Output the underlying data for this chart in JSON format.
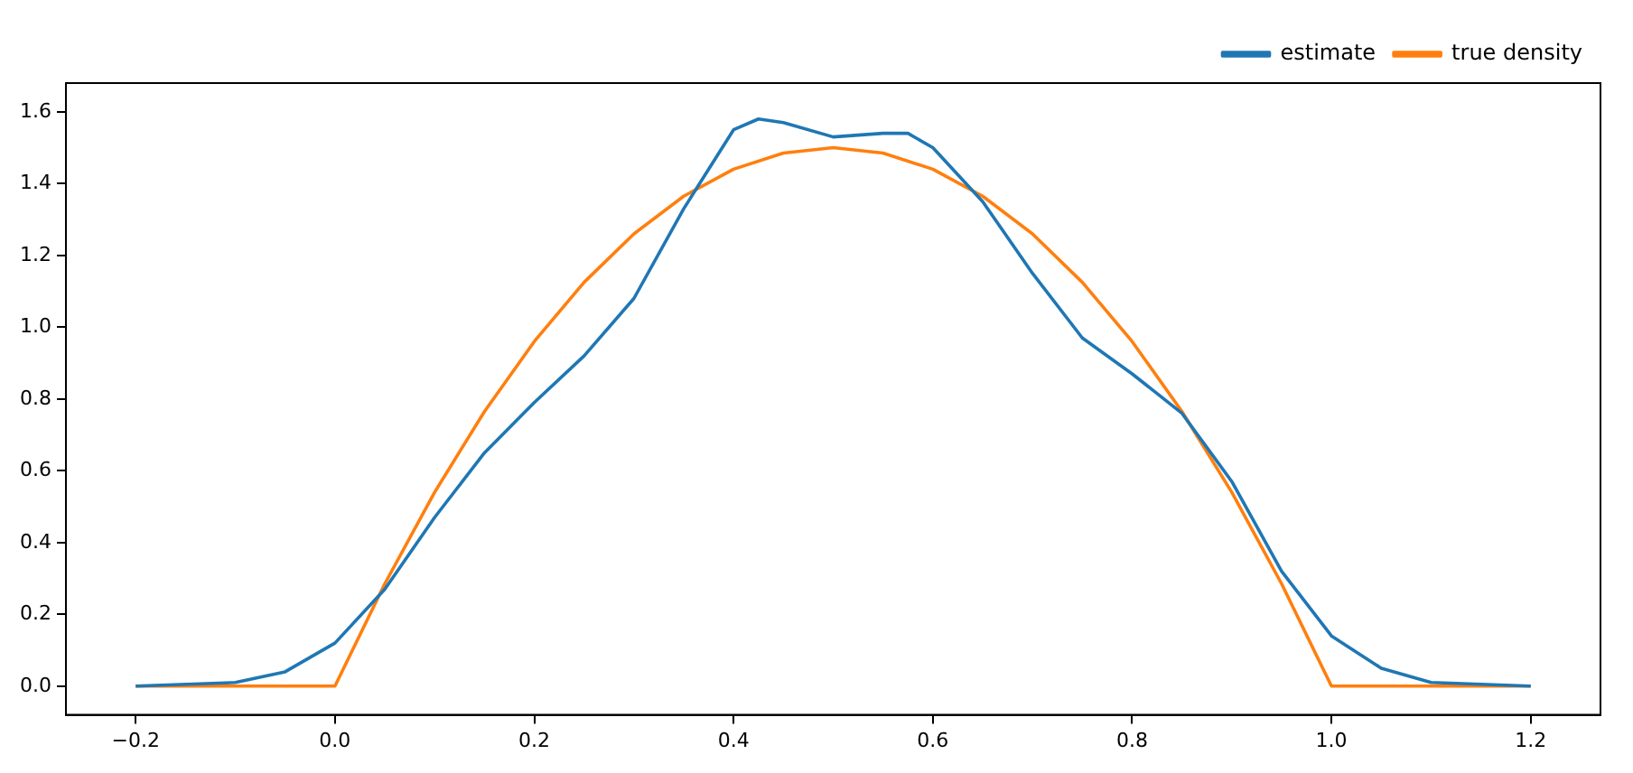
{
  "chart_data": {
    "type": "line",
    "xlim": [
      -0.27,
      1.27
    ],
    "ylim": [
      -0.08,
      1.68
    ],
    "xticks": [
      {
        "value": -0.2,
        "label": "−0.2"
      },
      {
        "value": 0,
        "label": "0.0"
      },
      {
        "value": 0.2,
        "label": "0.2"
      },
      {
        "value": 0.4,
        "label": "0.4"
      },
      {
        "value": 0.6,
        "label": "0.6"
      },
      {
        "value": 0.8,
        "label": "0.8"
      },
      {
        "value": 1,
        "label": "1.0"
      },
      {
        "value": 1.2,
        "label": "1.2"
      }
    ],
    "yticks": [
      {
        "value": 0,
        "label": "0.0"
      },
      {
        "value": 0.2,
        "label": "0.2"
      },
      {
        "value": 0.4,
        "label": "0.4"
      },
      {
        "value": 0.6,
        "label": "0.6"
      },
      {
        "value": 0.8,
        "label": "0.8"
      },
      {
        "value": 1,
        "label": "1.0"
      },
      {
        "value": 1.2,
        "label": "1.2"
      },
      {
        "value": 1.4,
        "label": "1.4"
      },
      {
        "value": 1.6,
        "label": "1.6"
      }
    ],
    "legend": "top right",
    "grid": false,
    "marker": "none",
    "line_style": "solid",
    "series": [
      {
        "name": "estimate",
        "color": "#1f77b4",
        "x": [
          -0.2,
          -0.1,
          -0.05,
          0,
          0.05,
          0.1,
          0.15,
          0.2,
          0.25,
          0.3,
          0.35,
          0.4,
          0.425,
          0.45,
          0.5,
          0.55,
          0.575,
          0.6,
          0.65,
          0.7,
          0.75,
          0.8,
          0.85,
          0.9,
          0.95,
          1,
          1.05,
          1.1,
          1.2
        ],
        "values": [
          0,
          0.01,
          0.04,
          0.12,
          0.27,
          0.47,
          0.65,
          0.79,
          0.92,
          1.08,
          1.33,
          1.55,
          1.58,
          1.57,
          1.53,
          1.54,
          1.54,
          1.5,
          1.35,
          1.15,
          0.97,
          0.87,
          0.76,
          0.57,
          0.32,
          0.14,
          0.05,
          0.01,
          0
        ]
      },
      {
        "name": "true density",
        "color": "#ff7f0e",
        "x": [
          -0.2,
          0,
          0.05,
          0.1,
          0.15,
          0.2,
          0.25,
          0.3,
          0.35,
          0.4,
          0.45,
          0.5,
          0.55,
          0.6,
          0.65,
          0.7,
          0.75,
          0.8,
          0.85,
          0.9,
          0.95,
          1,
          1.2
        ],
        "values": [
          0,
          0,
          0.285,
          0.54,
          0.765,
          0.96,
          1.125,
          1.26,
          1.365,
          1.44,
          1.485,
          1.5,
          1.485,
          1.44,
          1.365,
          1.26,
          1.125,
          0.96,
          0.765,
          0.54,
          0.285,
          0,
          0
        ]
      }
    ]
  }
}
